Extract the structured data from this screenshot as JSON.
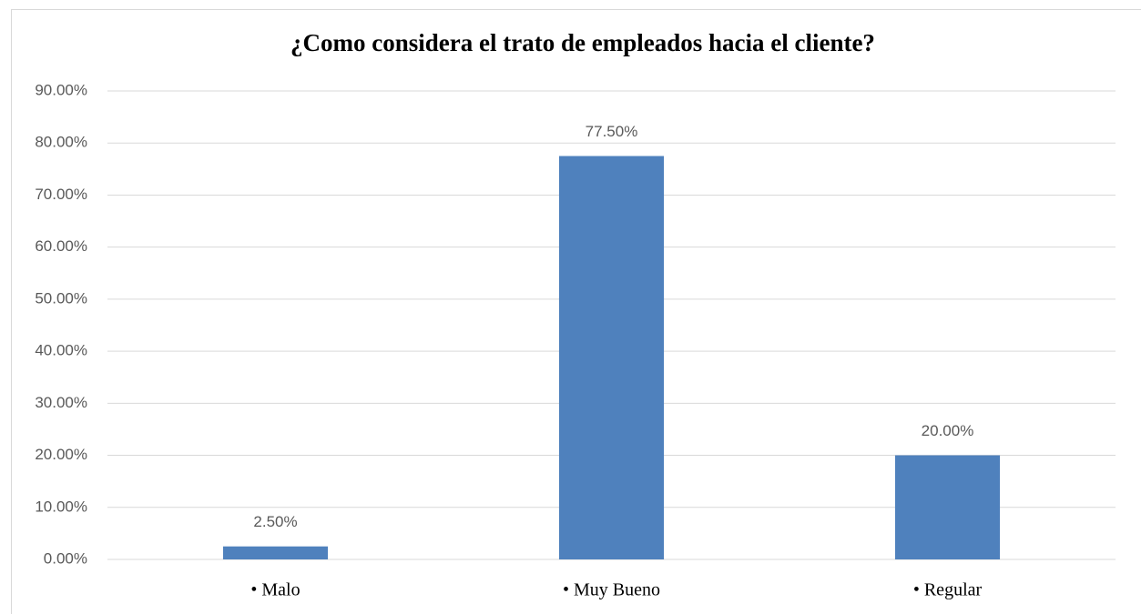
{
  "chart_data": {
    "type": "bar",
    "title": "¿Como considera el trato de empleados hacia el cliente?",
    "categories": [
      "• Malo",
      "• Muy Bueno",
      "• Regular"
    ],
    "values": [
      2.5,
      77.5,
      20
    ],
    "value_labels": [
      "2.50%",
      "77.50%",
      "20.00%"
    ],
    "color": "#4f81bd",
    "ylim": [
      0,
      90
    ],
    "yticks": [
      {
        "value": 0,
        "label": "0.00%"
      },
      {
        "value": 10,
        "label": "10.00%"
      },
      {
        "value": 20,
        "label": "20.00%"
      },
      {
        "value": 30,
        "label": "30.00%"
      },
      {
        "value": 40,
        "label": "40.00%"
      },
      {
        "value": 50,
        "label": "50.00%"
      },
      {
        "value": 60,
        "label": "60.00%"
      },
      {
        "value": 70,
        "label": "70.00%"
      },
      {
        "value": 80,
        "label": "80.00%"
      },
      {
        "value": 90,
        "label": "90.00%"
      }
    ],
    "grid": true
  }
}
